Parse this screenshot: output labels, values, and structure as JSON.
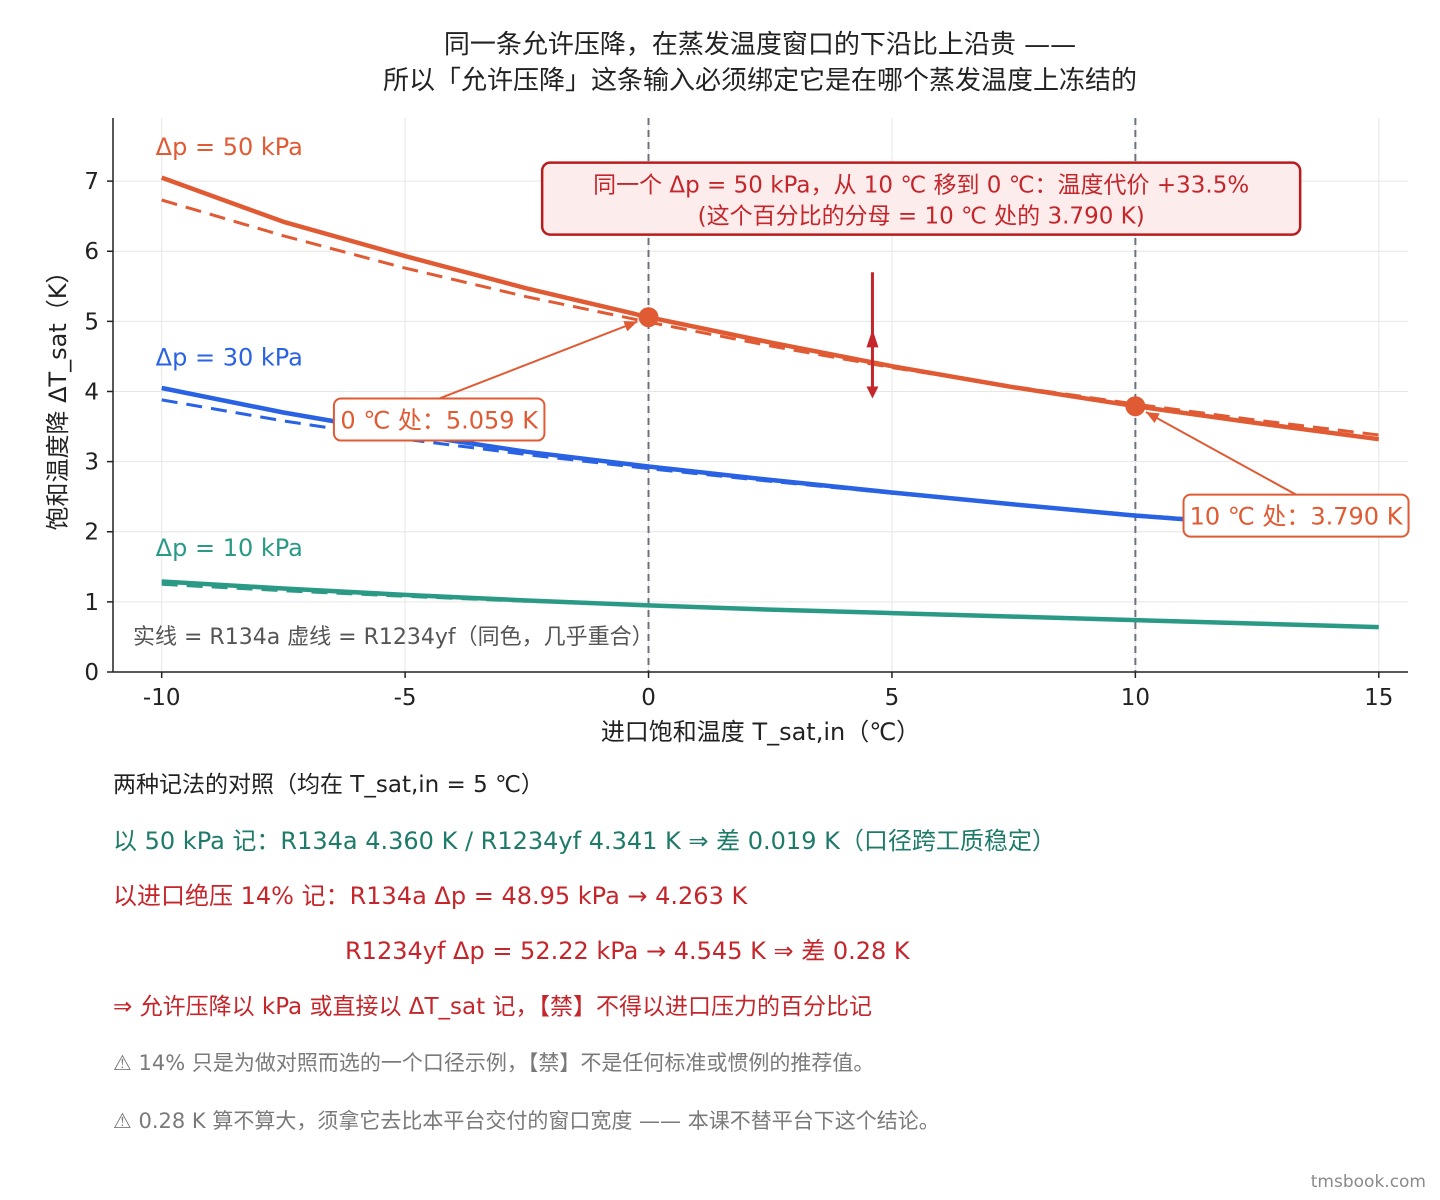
{
  "chart_data": {
    "type": "line",
    "title_lines": [
      "同一条允许压降，在蒸发温度窗口的下沿比上沿贵 ——",
      "所以「允许压降」这条输入必须绑定它是在哪个蒸发温度上冻结的"
    ],
    "xlabel": "进口饱和温度 T_sat,in（℃）",
    "ylabel": "饱和温度降 ΔT_sat（K）",
    "xlim": [
      -11,
      15.6
    ],
    "ylim": [
      0,
      7.9
    ],
    "xticks": [
      -10,
      -5,
      0,
      5,
      10,
      15
    ],
    "xtick_labels": [
      "-10",
      "-5",
      "0",
      "5",
      "10",
      "15"
    ],
    "yticks": [
      0,
      1,
      2,
      3,
      4,
      5,
      6,
      7
    ],
    "ytick_labels": [
      "0",
      "1",
      "2",
      "3",
      "4",
      "5",
      "6",
      "7"
    ],
    "grid": true,
    "x": [
      -10,
      -7.5,
      -5,
      -2.5,
      0,
      2.5,
      5,
      7.5,
      10,
      12.5,
      15
    ],
    "series": [
      {
        "name": "Δp = 50 kPa",
        "fluid": "R134a",
        "style": "solid",
        "color": "#e05a33",
        "values": [
          7.05,
          6.42,
          5.93,
          5.47,
          5.059,
          4.7,
          4.36,
          4.06,
          3.79,
          3.55,
          3.32
        ]
      },
      {
        "name": "Δp = 50 kPa",
        "fluid": "R1234yf",
        "style": "dashed",
        "color": "#e05a33",
        "values": [
          6.73,
          6.22,
          5.76,
          5.35,
          4.99,
          4.65,
          4.341,
          4.07,
          3.82,
          3.59,
          3.38
        ]
      },
      {
        "name": "Δp = 30 kPa",
        "fluid": "R134a",
        "style": "solid",
        "color": "#2962e3",
        "values": [
          4.05,
          3.7,
          3.4,
          3.14,
          2.93,
          2.74,
          2.56,
          2.39,
          2.23,
          2.1,
          1.98
        ]
      },
      {
        "name": "Δp = 30 kPa",
        "fluid": "R1234yf",
        "style": "dashed",
        "color": "#2962e3",
        "values": [
          3.88,
          3.58,
          3.32,
          3.1,
          2.9,
          2.72,
          2.55,
          2.39,
          2.24,
          2.11,
          1.99
        ]
      },
      {
        "name": "Δp = 10 kPa",
        "fluid": "R134a",
        "style": "solid",
        "color": "#2a9a86",
        "values": [
          1.29,
          1.19,
          1.1,
          1.02,
          0.95,
          0.89,
          0.84,
          0.79,
          0.74,
          0.69,
          0.64
        ]
      },
      {
        "name": "Δp = 10 kPa",
        "fluid": "R1234yf",
        "style": "dashed",
        "color": "#2a9a86",
        "values": [
          1.25,
          1.16,
          1.08,
          1.01,
          0.95,
          0.89,
          0.84,
          0.79,
          0.74,
          0.69,
          0.645
        ]
      }
    ],
    "series_labels": [
      {
        "text": "Δp = 50 kPa",
        "color": "#e05a33",
        "x": -10,
        "y": 7.5
      },
      {
        "text": "Δp = 30 kPa",
        "color": "#2962e3",
        "x": -10,
        "y": 4.5
      },
      {
        "text": "Δp = 10 kPa",
        "color": "#2a9a86",
        "x": -10,
        "y": 1.78
      }
    ],
    "vlines": [
      0,
      10
    ],
    "markers": [
      {
        "x": 0,
        "y": 5.059,
        "label": "0 ℃ 处：5.059 K",
        "label_x": -4.3,
        "label_y": 3.6
      },
      {
        "x": 10,
        "y": 3.79,
        "label": "10 ℃ 处：3.790 K",
        "label_x": 13.3,
        "label_y": 2.23
      }
    ],
    "callout": {
      "lines": [
        "同一个 Δp = 50 kPa，从 10 ℃ 移到 0 ℃：温度代价 +33.5%",
        "(这个百分比的分母 = 10 ℃ 处的 3.790 K)"
      ],
      "x": 5.6,
      "y": 6.75
    },
    "arrow_x": 4.6,
    "arrow_from_y": 5.7,
    "arrow_to_y": 3.9,
    "legend_note": "实线 = R134a      虚线 = R1234yf（同色，几乎重合）",
    "colors": {
      "grid": "#e6e6e6",
      "vline": "#6b7280",
      "callout_edge": "#b91c1c",
      "callout_fill": "#fdecec",
      "callout_text": "#c4262b",
      "arrow": "#c4262b"
    }
  },
  "notes": {
    "heading": "两种记法的对照（均在 T_sat,in = 5 ℃）",
    "line1": "以 50 kPa 记：R134a 4.360 K   /   R1234yf 4.341 K   ⇒ 差 0.019 K（口径跨工质稳定）",
    "line2": "以进口绝压 14% 记：R134a  Δp = 48.95 kPa → 4.263 K",
    "line3": "R1234yf  Δp = 52.22 kPa → 4.545 K   ⇒ 差 0.28 K",
    "line4": "⇒ 允许压降以 kPa 或直接以 ΔT_sat 记，【禁】不得以进口压力的百分比记",
    "warn1": "⚠ 14% 只是为做对照而选的一个口径示例，【禁】不是任何标准或惯例的推荐值。",
    "warn2": "⚠ 0.28 K 算不算大，须拿它去比本平台交付的窗口宽度 —— 本课不替平台下这个结论。"
  },
  "watermark": "tmsbook.com"
}
